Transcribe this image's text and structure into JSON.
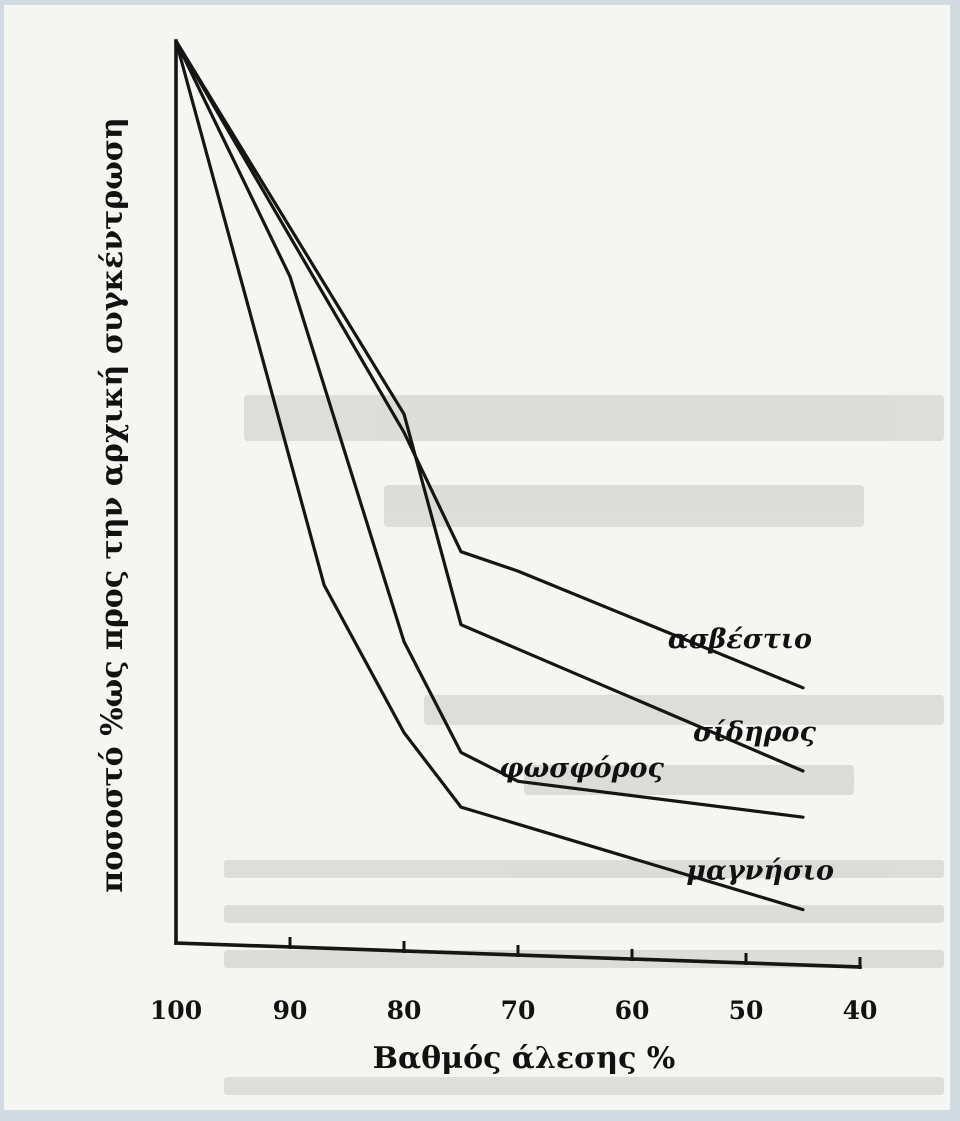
{
  "chart_data": {
    "type": "line",
    "xlabel": "Βαθμός άλεσης %",
    "ylabel": "ποσοστό %ως προς την αρχική συγκέντρωση",
    "x_ticks": [
      100,
      90,
      80,
      70,
      60,
      50,
      40
    ],
    "xlim": [
      100,
      40
    ],
    "ylim": [
      0,
      100
    ],
    "grid": false,
    "legend": "inline labels at line ends",
    "series": [
      {
        "name": "ασβέστιο",
        "x": [
          100,
          80,
          75,
          70,
          45
        ],
        "y": [
          100,
          57,
          44,
          42,
          30
        ]
      },
      {
        "name": "σίδηρος",
        "x": [
          100,
          80,
          75,
          45
        ],
        "y": [
          100,
          59,
          36,
          21
        ]
      },
      {
        "name": "φωσφόρος",
        "x": [
          100,
          90,
          80,
          75,
          70,
          45
        ],
        "y": [
          100,
          74,
          34,
          22,
          19,
          16
        ]
      },
      {
        "name": "μαγνήσιο",
        "x": [
          100,
          87,
          80,
          75,
          45
        ],
        "y": [
          100,
          40,
          24,
          16,
          6
        ]
      }
    ]
  }
}
